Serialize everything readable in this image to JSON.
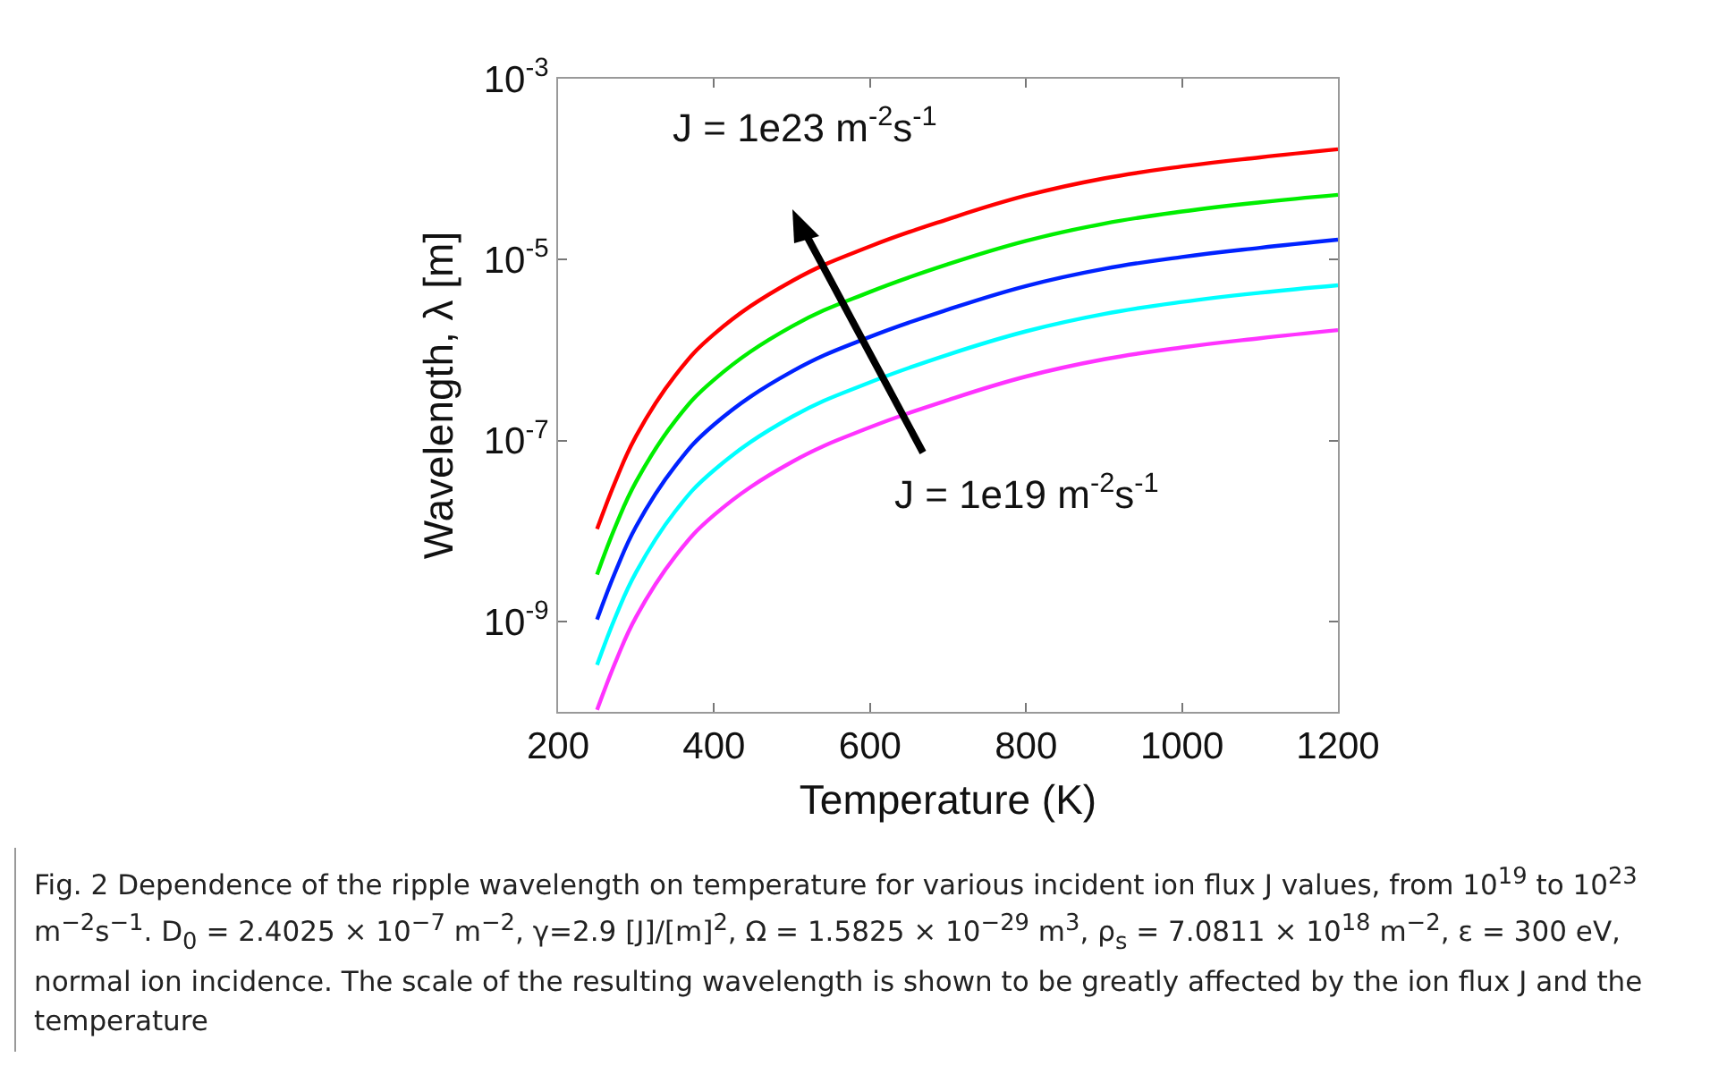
{
  "chart_data": {
    "type": "line",
    "xlabel": "Temperature (K)",
    "ylabel": "Wavelength, λ [m]",
    "log": "y",
    "xlim": [
      200,
      1200
    ],
    "xticks": [
      200,
      400,
      600,
      800,
      1000,
      1200
    ],
    "ylim": [
      1e-10,
      0.001
    ],
    "yticks": [
      {
        "value": 0.001,
        "label": "10$^{-3}$"
      },
      {
        "value": 1e-05,
        "label": "10$^{-5}$"
      },
      {
        "value": 1e-07,
        "label": "10$^{-7}$"
      },
      {
        "value": 1e-09,
        "label": "10$^{-9}$"
      }
    ],
    "grid": false,
    "marker": "none",
    "line_style": "solid",
    "x": [
      250,
      275,
      300,
      350,
      400,
      500,
      600,
      700,
      800,
      900,
      1000,
      1100,
      1200
    ],
    "series": [
      {
        "color": "#ff0000",
        "values": [
          1.05e-08,
          3.8e-08,
          1.12e-07,
          5.2e-07,
          1.5e-06,
          5.8e-06,
          1.4e-05,
          2.8e-05,
          5.1e-05,
          7.9e-05,
          0.000107,
          0.000135,
          0.000166
        ]
      },
      {
        "color": "#00ee00",
        "values": [
          3.3e-09,
          1.2e-08,
          3.5e-08,
          1.64e-07,
          4.7e-07,
          1.83e-06,
          4.4e-06,
          8.9e-06,
          1.61e-05,
          2.5e-05,
          3.4e-05,
          4.3e-05,
          5.2e-05
        ]
      },
      {
        "color": "#0022ff",
        "values": [
          1.05e-09,
          3.8e-09,
          1.12e-08,
          5.2e-08,
          1.5e-07,
          5.8e-07,
          1.4e-06,
          2.8e-06,
          5.1e-06,
          7.9e-06,
          1.07e-05,
          1.35e-05,
          1.66e-05
        ]
      },
      {
        "color": "#00ffff",
        "values": [
          3.3e-10,
          1.2e-09,
          3.5e-09,
          1.64e-08,
          4.7e-08,
          1.83e-07,
          4.4e-07,
          8.9e-07,
          1.61e-06,
          2.5e-06,
          3.4e-06,
          4.3e-06,
          5.2e-06
        ]
      },
      {
        "color": "#ff33ff",
        "values": [
          1.05e-10,
          3.8e-10,
          1.12e-09,
          5.2e-09,
          1.5e-08,
          5.8e-08,
          1.4e-07,
          2.8e-07,
          5.1e-07,
          7.9e-07,
          1.07e-06,
          1.35e-06,
          1.66e-06
        ]
      }
    ],
    "annotations": [
      "J = 1e23 m$^{-2}$s$^{-1}$",
      "J = 1e19 m$^{-2}$s$^{-1}$",
      "Fig. 2  Dependence of the ripple wavelength on temperature for various incident ion flux J values, from 10$^{19}$ to 10$^{23}$ m$^{−2}$s$^{−1}$. D$_{0}$ = 2.4025 × 10$^{−7}$ m$^{−2}$, γ=2.9 [J]/[m]$^{2}$, Ω = 1.5825 × 10$^{−29}$ m$^{3}$, ρ$_{s}$ = 7.0811 × 10$^{18}$ m$^{−2}$, ε = 300 eV, normal ion incidence. The scale of the resulting wavelength is shown to be greatly affected by the ion flux J and the temperature"
    ]
  }
}
